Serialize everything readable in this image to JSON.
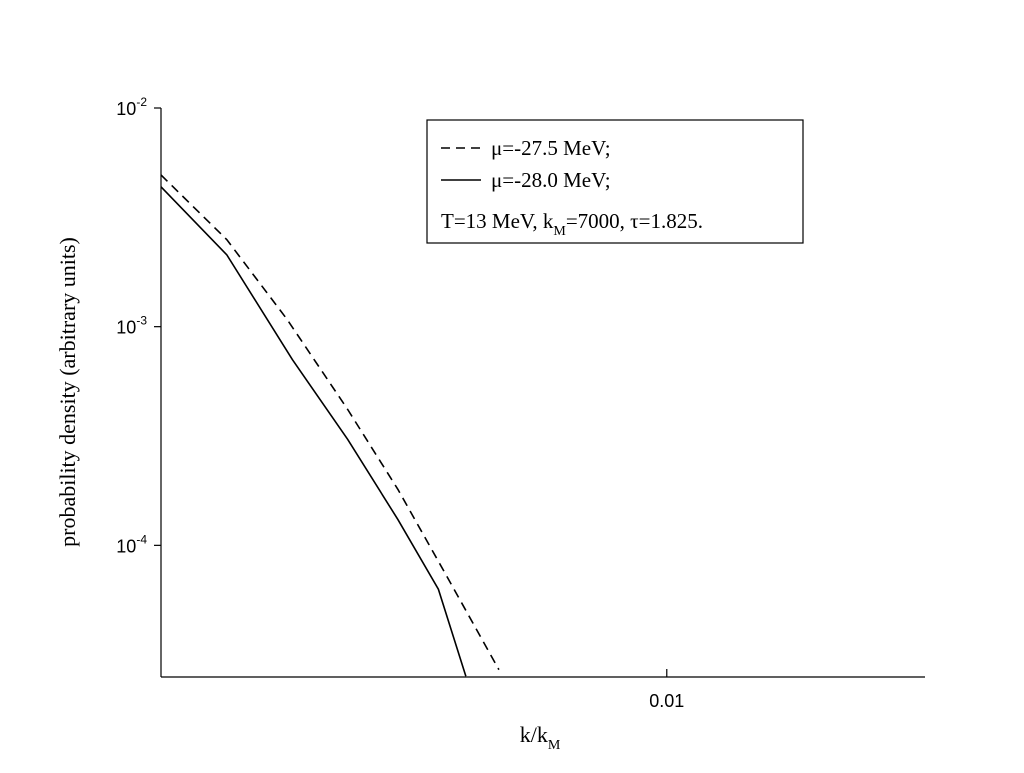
{
  "chart_data": {
    "type": "line",
    "x_label": [
      "k/k",
      "M"
    ],
    "y_label": "probability density (arbitrary units)",
    "x_log": true,
    "y_log": true,
    "xlim": [
      0.0018,
      0.024
    ],
    "ylim": [
      2.5e-05,
      0.01
    ],
    "xticks": [
      0.01
    ],
    "yticks": [
      {
        "value": 0.01,
        "label": "10",
        "exponent": "-2"
      },
      {
        "value": 0.001,
        "label": "10",
        "exponent": "-3"
      },
      {
        "value": 0.0001,
        "label": "10",
        "exponent": "-4"
      }
    ],
    "legend_position": "upper right",
    "annotation": [
      "T=13 MeV, k",
      "M",
      "=7000, τ=1.825."
    ],
    "series": [
      {
        "name": "μ=-27.5 MeV;",
        "color": "#000000",
        "dash": true,
        "x": [
          0.0018,
          0.00225,
          0.00276,
          0.00339,
          0.00402,
          0.00477,
          0.00566
        ],
        "values": [
          0.00494,
          0.0025,
          0.00108,
          0.000418,
          0.00018,
          7e-05,
          2.7e-05
        ]
      },
      {
        "name": "μ=-28.0 MeV;",
        "color": "#000000",
        "dash": false,
        "x": [
          0.0018,
          0.00225,
          0.00281,
          0.00339,
          0.00402,
          0.00461,
          0.00506
        ],
        "values": [
          0.00436,
          0.00213,
          0.000707,
          0.000305,
          0.000131,
          6.3e-05,
          2.52e-05
        ]
      }
    ]
  }
}
